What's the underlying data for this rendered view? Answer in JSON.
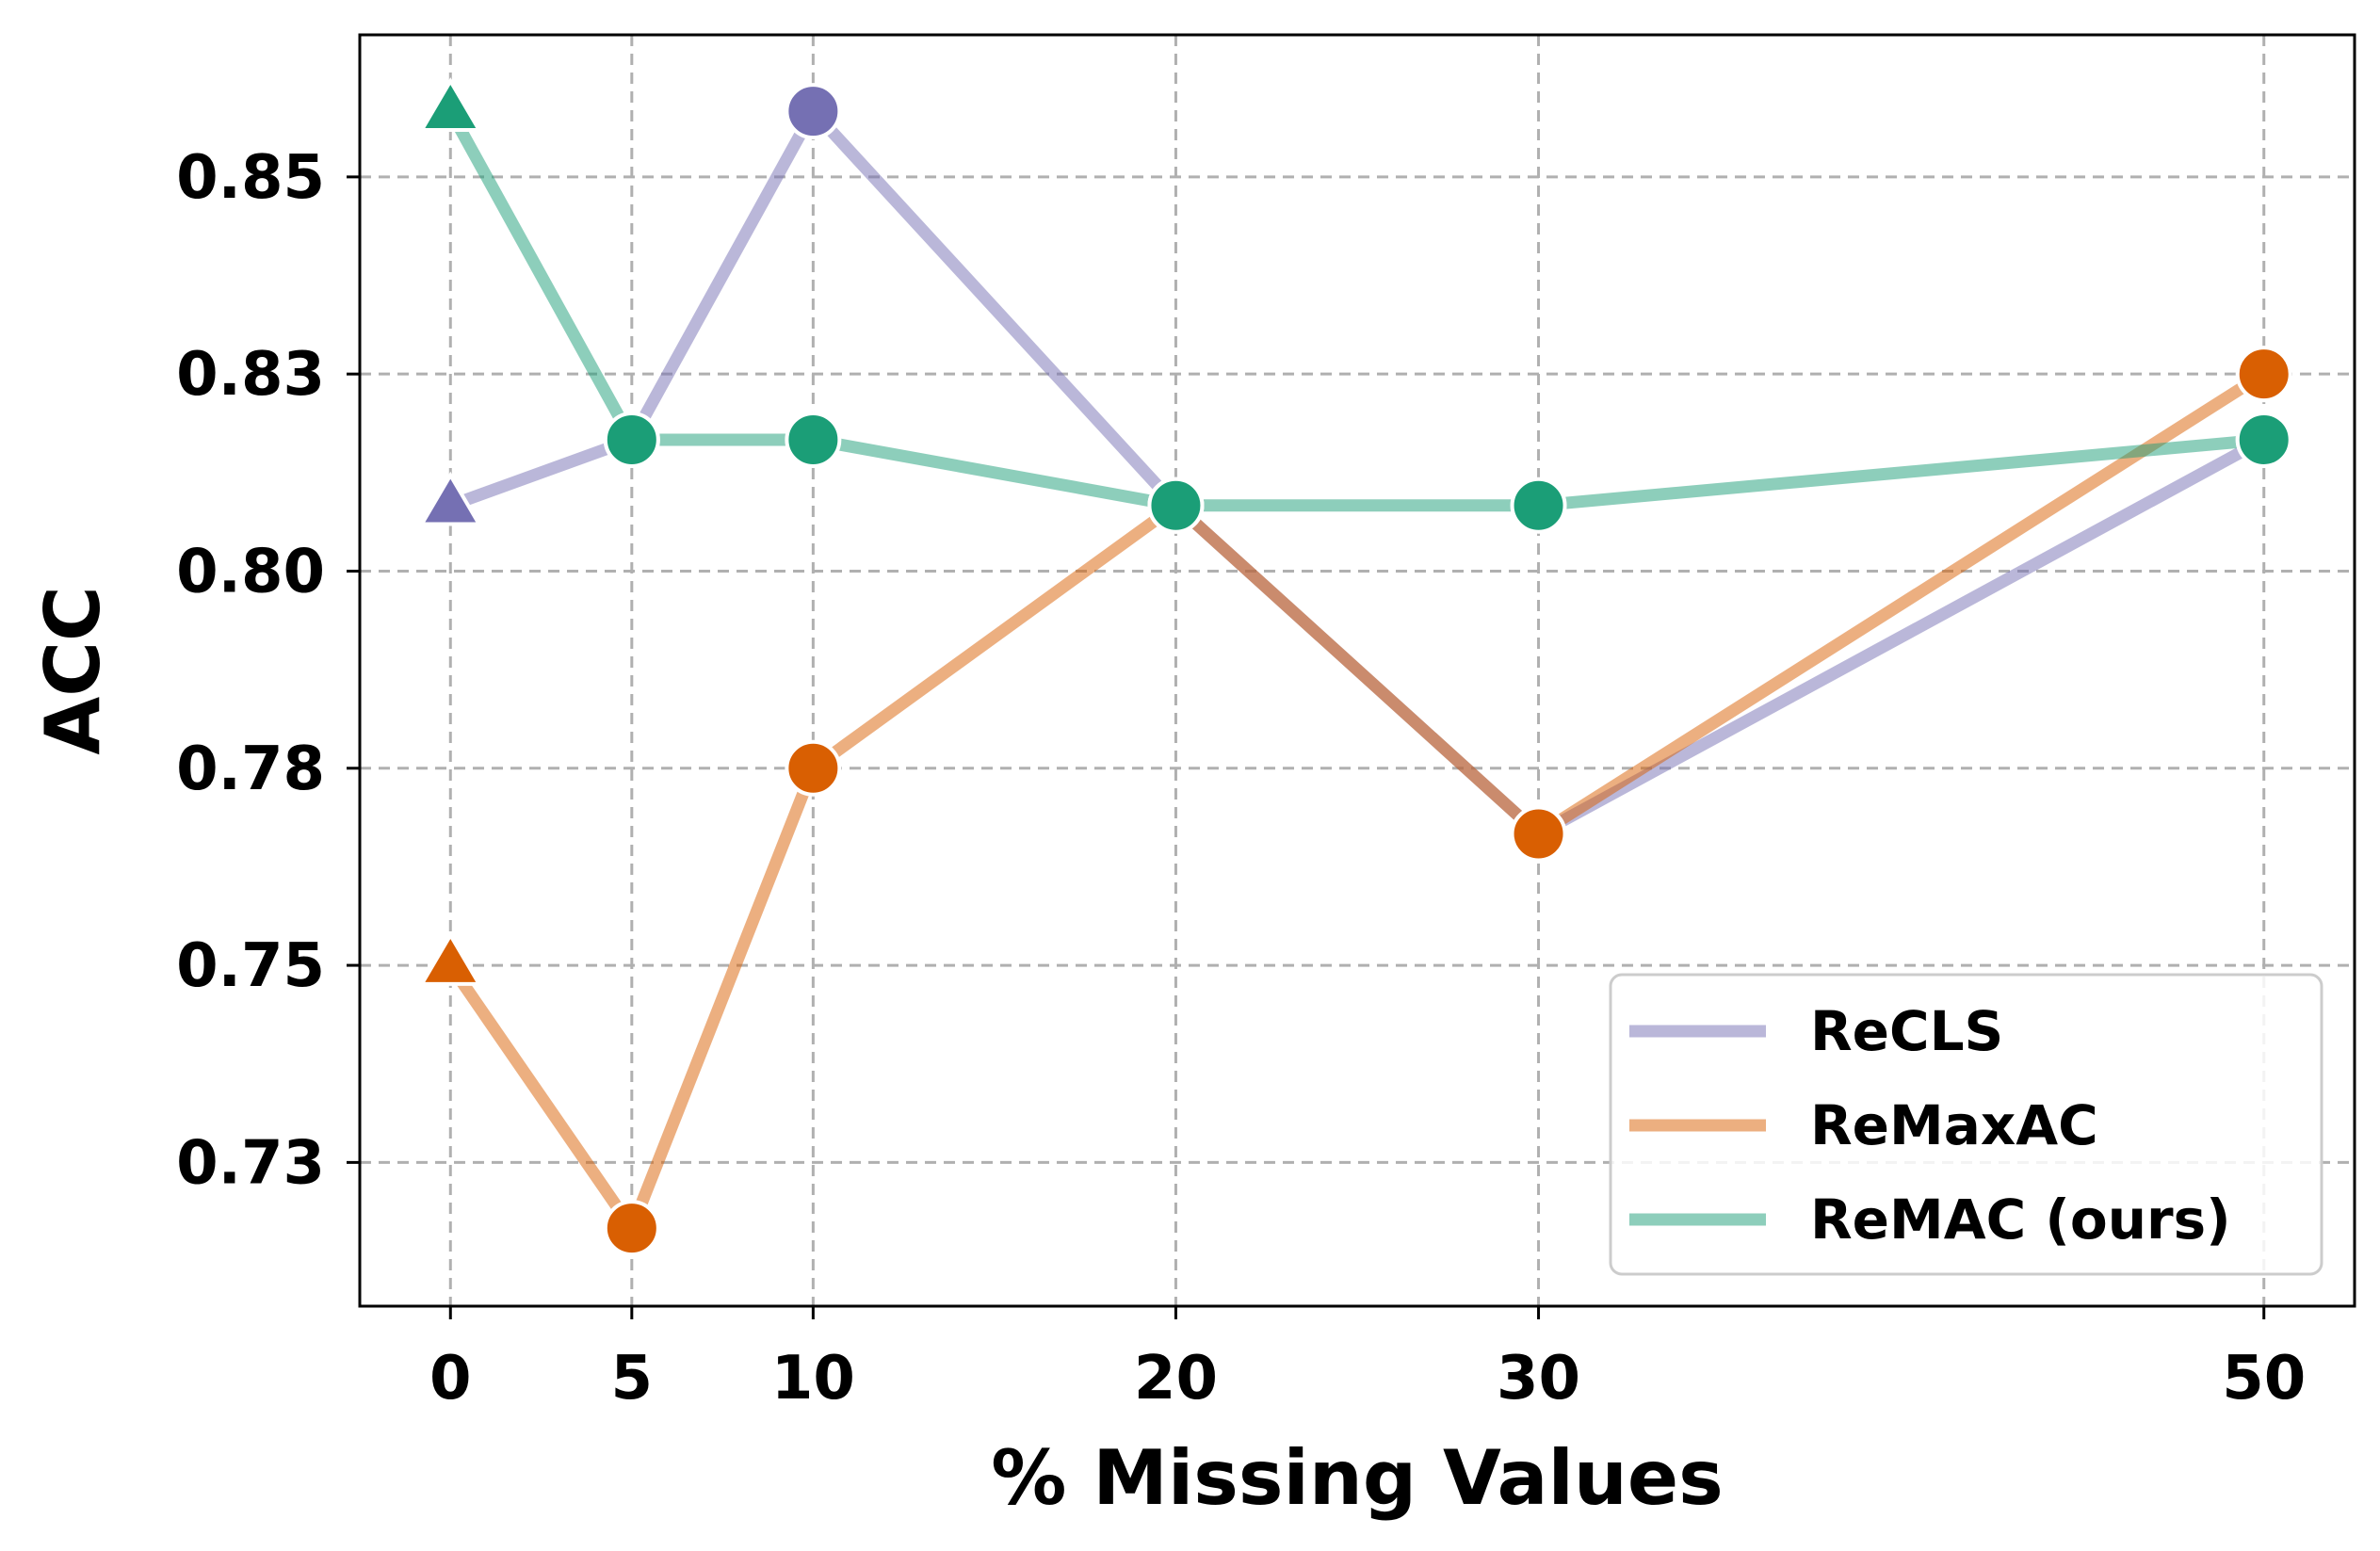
{
  "chart_data": {
    "type": "line",
    "xlabel": "% Missing Values",
    "ylabel": "ACC",
    "x": [
      0,
      5,
      10,
      20,
      30,
      50
    ],
    "xticks": [
      "0",
      "5",
      "10",
      "20",
      "30",
      "50"
    ],
    "yticks": [
      "0.73",
      "0.75",
      "0.78",
      "0.80",
      "0.83",
      "0.85"
    ],
    "ytick_values": [
      0.728,
      0.752,
      0.776,
      0.8,
      0.824,
      0.848
    ],
    "xlim": [
      -2.5,
      52.5
    ],
    "ylim": [
      0.7105,
      0.8653
    ],
    "grid": true,
    "legend_position": "lower-right",
    "series": [
      {
        "name": "ReCLS",
        "color": "#7570b3",
        "values": [
          0.808,
          0.816,
          0.856,
          0.808,
          0.768,
          0.816
        ],
        "markers": [
          "triangle",
          "circle",
          "circle",
          "circle",
          "circle",
          "circle"
        ]
      },
      {
        "name": "ReMaxAC",
        "color": "#d95f02",
        "values": [
          0.752,
          0.72,
          0.776,
          0.808,
          0.768,
          0.824
        ],
        "markers": [
          "triangle",
          "circle",
          "circle",
          "circle",
          "circle",
          "circle"
        ]
      },
      {
        "name": "ReMAC (ours)",
        "color": "#1b9e77",
        "values": [
          0.856,
          0.816,
          0.816,
          0.808,
          0.808,
          0.816
        ],
        "markers": [
          "triangle",
          "circle",
          "circle",
          "circle",
          "circle",
          "circle"
        ]
      }
    ]
  }
}
